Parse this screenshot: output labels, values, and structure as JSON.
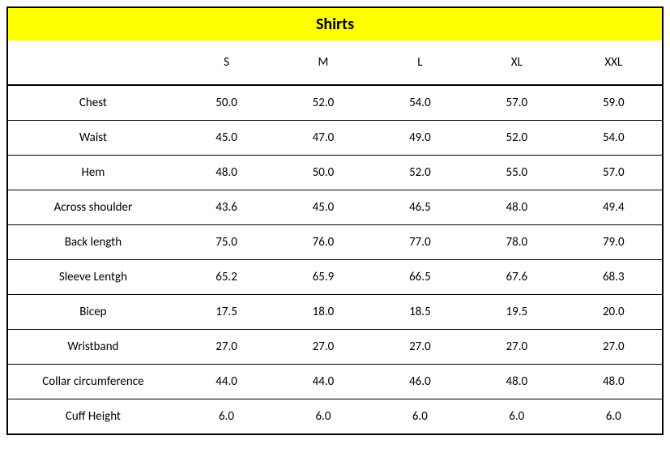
{
  "title": "Shirts",
  "title_bg": "#ffff00",
  "border_color": "#000000",
  "background_color": "#ffffff",
  "text_color": "#000000",
  "font_family": "Calibri",
  "title_fontsize": 20,
  "body_fontsize": 15,
  "columns": [
    "",
    "S",
    "M",
    "L",
    "XL",
    "XXL"
  ],
  "rows": [
    {
      "label": "Chest",
      "values": [
        "50.0",
        "52.0",
        "54.0",
        "57.0",
        "59.0"
      ]
    },
    {
      "label": "Waist",
      "values": [
        "45.0",
        "47.0",
        "49.0",
        "52.0",
        "54.0"
      ]
    },
    {
      "label": "Hem",
      "values": [
        "48.0",
        "50.0",
        "52.0",
        "55.0",
        "57.0"
      ]
    },
    {
      "label": "Across shoulder",
      "values": [
        "43.6",
        "45.0",
        "46.5",
        "48.0",
        "49.4"
      ]
    },
    {
      "label": "Back length",
      "values": [
        "75.0",
        "76.0",
        "77.0",
        "78.0",
        "79.0"
      ]
    },
    {
      "label": "Sleeve Lentgh",
      "values": [
        "65.2",
        "65.9",
        "66.5",
        "67.6",
        "68.3"
      ]
    },
    {
      "label": "Bicep",
      "values": [
        "17.5",
        "18.0",
        "18.5",
        "19.5",
        "20.0"
      ]
    },
    {
      "label": "Wristband",
      "values": [
        "27.0",
        "27.0",
        "27.0",
        "27.0",
        "27.0"
      ]
    },
    {
      "label": "Collar circumference",
      "values": [
        "44.0",
        "44.0",
        "46.0",
        "48.0",
        "48.0"
      ]
    },
    {
      "label": "Cuff Height",
      "values": [
        "6.0",
        "6.0",
        "6.0",
        "6.0",
        "6.0"
      ]
    }
  ]
}
